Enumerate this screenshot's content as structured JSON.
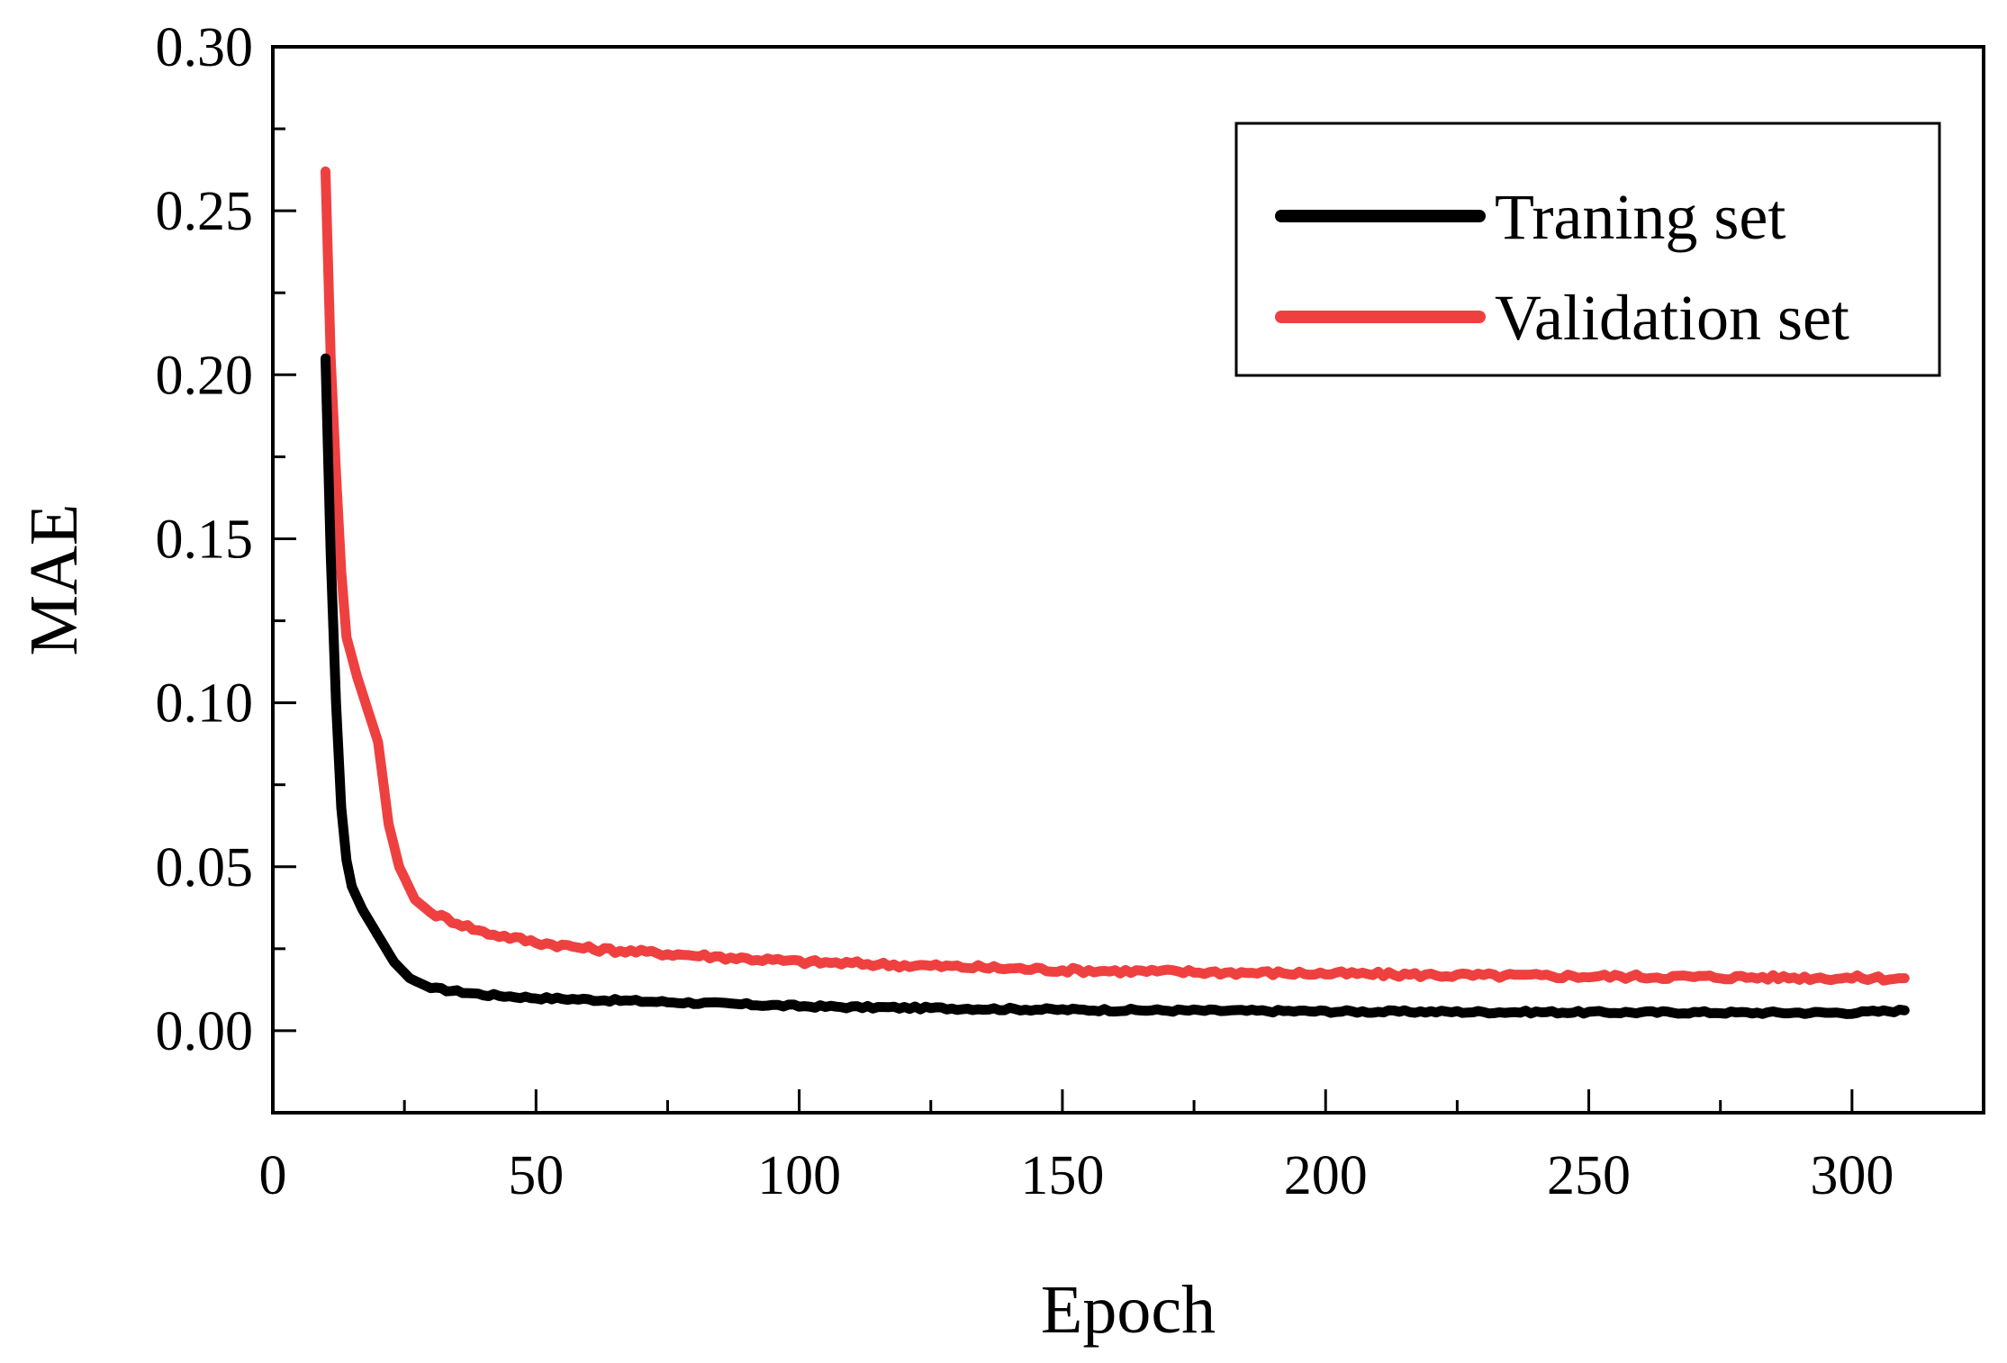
{
  "chart_data": {
    "type": "line",
    "title": "",
    "xlabel": "Epoch",
    "ylabel": "MAE",
    "xlim": [
      0,
      325
    ],
    "ylim": [
      -0.025,
      0.3
    ],
    "xticks": [
      "0",
      "50",
      "100",
      "150",
      "200",
      "250",
      "300"
    ],
    "yticks": [
      "0.00",
      "0.05",
      "0.10",
      "0.15",
      "0.20",
      "0.25",
      "0.30"
    ],
    "legend_position": "top-right",
    "series": [
      {
        "name": "Traning set",
        "color": "#000000",
        "x": [
          10,
          11,
          12,
          13,
          14,
          15,
          17,
          20,
          23,
          26,
          30,
          35,
          40,
          50,
          60,
          70,
          80,
          90,
          100,
          110,
          120,
          130,
          140,
          150,
          160,
          170,
          180,
          190,
          200,
          210,
          220,
          230,
          240,
          250,
          260,
          270,
          280,
          290,
          300,
          310
        ],
        "values": [
          0.205,
          0.145,
          0.1,
          0.068,
          0.052,
          0.044,
          0.037,
          0.029,
          0.021,
          0.016,
          0.013,
          0.012,
          0.011,
          0.01,
          0.0095,
          0.009,
          0.0085,
          0.008,
          0.0075,
          0.0072,
          0.007,
          0.0068,
          0.0066,
          0.0064,
          0.0063,
          0.0062,
          0.0061,
          0.006,
          0.0059,
          0.0058,
          0.0058,
          0.0057,
          0.0057,
          0.0056,
          0.0056,
          0.0056,
          0.0055,
          0.0055,
          0.0055,
          0.0062
        ]
      },
      {
        "name": "Validation set",
        "color": "#ef4040",
        "x": [
          10,
          11,
          12,
          13,
          14,
          16,
          18,
          20,
          22,
          24,
          27,
          30,
          35,
          40,
          50,
          60,
          70,
          80,
          90,
          100,
          110,
          120,
          130,
          140,
          150,
          160,
          170,
          180,
          190,
          200,
          210,
          220,
          230,
          240,
          250,
          260,
          270,
          280,
          290,
          300,
          310
        ],
        "values": [
          0.262,
          0.205,
          0.17,
          0.14,
          0.12,
          0.108,
          0.098,
          0.088,
          0.063,
          0.05,
          0.04,
          0.036,
          0.033,
          0.03,
          0.027,
          0.025,
          0.024,
          0.023,
          0.022,
          0.021,
          0.0205,
          0.02,
          0.0195,
          0.019,
          0.0185,
          0.0182,
          0.018,
          0.0178,
          0.0176,
          0.0174,
          0.0172,
          0.017,
          0.0168,
          0.0167,
          0.0166,
          0.0165,
          0.0164,
          0.0163,
          0.0162,
          0.0161,
          0.016
        ]
      }
    ]
  }
}
